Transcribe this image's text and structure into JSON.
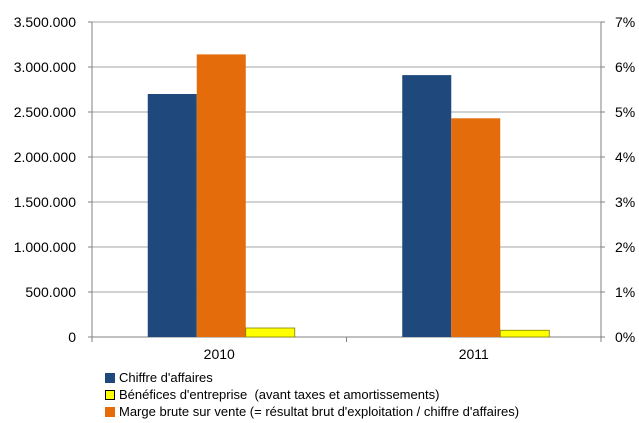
{
  "chart_data": {
    "type": "bar",
    "categories": [
      "2010",
      "2011"
    ],
    "series": [
      {
        "name": "Chiffre d'affaires",
        "axis": "left",
        "values": [
          2700000,
          2910000
        ],
        "color": "#1F497D"
      },
      {
        "name": "Marge brute sur vente (= résultat brut d'exploitation / chiffre d'affaires)",
        "axis": "right",
        "values": [
          6.28,
          4.86
        ],
        "unit": "%",
        "color": "#E46C0A"
      },
      {
        "name": "Bénéfices d'entreprise  (avant taxes et amortissements)",
        "axis": "left",
        "values": [
          100000,
          75000
        ],
        "color": "#FFFF00"
      }
    ],
    "legend_order": [
      0,
      2,
      1
    ],
    "y_left": {
      "lim": [
        0,
        3500000
      ],
      "ticks": [
        0,
        500000,
        1000000,
        1500000,
        2000000,
        2500000,
        3000000,
        3500000
      ],
      "tick_labels": [
        "0",
        "500.000",
        "1.000.000",
        "1.500.000",
        "2.000.000",
        "2.500.000",
        "3.000.000",
        "3.500.000"
      ]
    },
    "y_right": {
      "lim": [
        0,
        7
      ],
      "ticks": [
        0,
        1,
        2,
        3,
        4,
        5,
        6,
        7
      ],
      "tick_labels": [
        "0%",
        "1%",
        "2%",
        "3%",
        "4%",
        "5%",
        "6%",
        "7%"
      ]
    },
    "grid": true,
    "legend_position": "bottom-left",
    "gridline_color": "#A6A6A6"
  }
}
